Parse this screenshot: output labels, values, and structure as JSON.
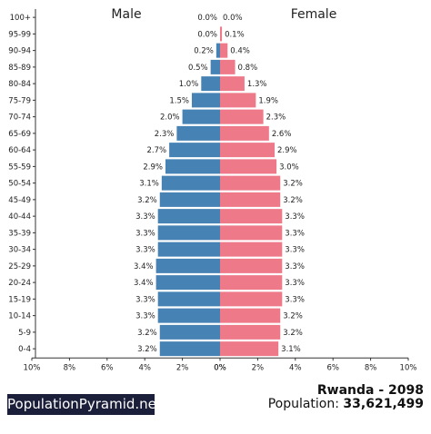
{
  "chart_data": {
    "type": "bar",
    "orientation": "horizontal-population-pyramid",
    "categories": [
      "100+",
      "95-99",
      "90-94",
      "85-89",
      "80-84",
      "75-79",
      "70-74",
      "65-69",
      "60-64",
      "55-59",
      "50-54",
      "45-49",
      "40-44",
      "35-39",
      "30-34",
      "25-29",
      "20-24",
      "15-19",
      "10-14",
      "5-9",
      "0-4"
    ],
    "series": [
      {
        "name": "Male",
        "color": "#4682b4",
        "values": [
          0.0,
          0.0,
          0.2,
          0.5,
          1.0,
          1.5,
          2.0,
          2.3,
          2.7,
          2.9,
          3.1,
          3.2,
          3.3,
          3.3,
          3.3,
          3.4,
          3.4,
          3.3,
          3.3,
          3.2,
          3.2
        ],
        "labels": [
          "0.0%",
          "0.0%",
          "0.2%",
          "0.5%",
          "1.0%",
          "1.5%",
          "2.0%",
          "2.3%",
          "2.7%",
          "2.9%",
          "3.1%",
          "3.2%",
          "3.3%",
          "3.3%",
          "3.3%",
          "3.4%",
          "3.4%",
          "3.3%",
          "3.3%",
          "3.2%",
          "3.2%"
        ]
      },
      {
        "name": "Female",
        "color": "#ee7989",
        "values": [
          0.0,
          0.1,
          0.4,
          0.8,
          1.3,
          1.9,
          2.3,
          2.6,
          2.9,
          3.0,
          3.2,
          3.2,
          3.3,
          3.3,
          3.3,
          3.3,
          3.3,
          3.3,
          3.2,
          3.2,
          3.1
        ],
        "labels": [
          "0.0%",
          "0.1%",
          "0.4%",
          "0.8%",
          "1.3%",
          "1.9%",
          "2.3%",
          "2.6%",
          "2.9%",
          "3.0%",
          "3.2%",
          "3.2%",
          "3.3%",
          "3.3%",
          "3.3%",
          "3.3%",
          "3.3%",
          "3.3%",
          "3.2%",
          "3.2%",
          "3.1%"
        ]
      }
    ],
    "xlim": [
      0,
      10
    ],
    "x_ticks": [
      "10%",
      "8%",
      "6%",
      "4%",
      "2%",
      "0%",
      "0%",
      "2%",
      "4%",
      "6%",
      "8%",
      "10%"
    ],
    "grid": false
  },
  "footer": {
    "brand": "PopulationPyramid.net",
    "country_year": "Rwanda - 2098",
    "population_label": "Population: ",
    "population_value": "33,621,499"
  }
}
